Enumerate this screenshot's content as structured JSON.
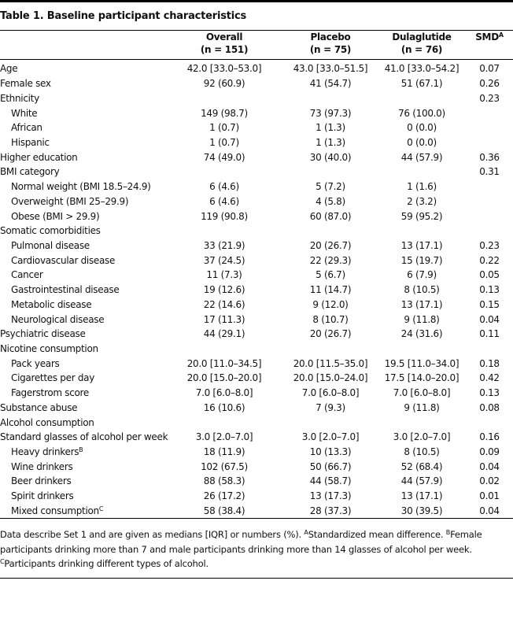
{
  "title": "Table 1. Baseline participant characteristics",
  "table": {
    "header": [
      {
        "title": "Overall",
        "n": "(n = 151)"
      },
      {
        "title": "Placebo",
        "n": "(n = 75)"
      },
      {
        "title": "Dulaglutide",
        "n": "(n = 76)"
      },
      {
        "title": "SMD",
        "sup": "A"
      }
    ],
    "rows": [
      {
        "label": "Age",
        "cells": [
          "42.0 [33.0–53.0]",
          "43.0 [33.0–51.5]",
          "41.0 [33.0–54.2]",
          "0.07"
        ]
      },
      {
        "label": "Female sex",
        "cells": [
          "92 (60.9)",
          "41 (54.7)",
          "51 (67.1)",
          "0.26"
        ]
      },
      {
        "label": "Ethnicity",
        "cells": [
          null,
          null,
          null,
          "0.23"
        ],
        "children": [
          {
            "label": "White",
            "cells": [
              "149 (98.7)",
              "73 (97.3)",
              "76 (100.0)",
              null
            ]
          },
          {
            "label": "African",
            "cells": [
              "1 (0.7)",
              "1 (1.3)",
              "0 (0.0)",
              null
            ]
          },
          {
            "label": "Hispanic",
            "cells": [
              "1 (0.7)",
              "1 (1.3)",
              "0 (0.0)",
              null
            ]
          }
        ]
      },
      {
        "label": "Higher education",
        "cells": [
          "74 (49.0)",
          "30 (40.0)",
          "44 (57.9)",
          "0.36"
        ]
      },
      {
        "label": "BMI category",
        "cells": [
          null,
          null,
          null,
          "0.31"
        ],
        "children": [
          {
            "label": "Normal weight (BMI 18.5–24.9)",
            "cells": [
              "6 (4.6)",
              "5 (7.2)",
              "1 (1.6)",
              null
            ]
          },
          {
            "label": "Overweight (BMI 25–29.9)",
            "cells": [
              "6 (4.6)",
              "4 (5.8)",
              "2 (3.2)",
              null
            ]
          },
          {
            "label": "Obese (BMI > 29.9)",
            "cells": [
              "119 (90.8)",
              "60 (87.0)",
              "59 (95.2)",
              null
            ]
          }
        ]
      },
      {
        "label": "Somatic comorbidities",
        "cells": [
          null,
          null,
          null,
          null
        ],
        "children": [
          {
            "label": "Pulmonal disease",
            "cells": [
              "33 (21.9)",
              "20 (26.7)",
              "13 (17.1)",
              "0.23"
            ]
          },
          {
            "label": "Cardiovascular disease",
            "cells": [
              "37 (24.5)",
              "22 (29.3)",
              "15 (19.7)",
              "0.22"
            ]
          },
          {
            "label": "Cancer",
            "cells": [
              "11 (7.3)",
              "5 (6.7)",
              "6 (7.9)",
              "0.05"
            ]
          },
          {
            "label": "Gastrointestinal disease",
            "cells": [
              "19 (12.6)",
              "11 (14.7)",
              "8 (10.5)",
              "0.13"
            ]
          },
          {
            "label": "Metabolic disease",
            "cells": [
              "22 (14.6)",
              "9 (12.0)",
              "13 (17.1)",
              "0.15"
            ]
          },
          {
            "label": "Neurological disease",
            "cells": [
              "17 (11.3)",
              "8 (10.7)",
              "9 (11.8)",
              "0.04"
            ]
          }
        ]
      },
      {
        "label": "Psychiatric disease",
        "cells": [
          "44 (29.1)",
          "20 (26.7)",
          "24 (31.6)",
          "0.11"
        ]
      },
      {
        "label": "Nicotine consumption",
        "cells": [
          null,
          null,
          null,
          null
        ],
        "children": [
          {
            "label": "Pack years",
            "cells": [
              "20.0 [11.0–34.5]",
              "20.0 [11.5–35.0]",
              "19.5 [11.0–34.0]",
              "0.18"
            ]
          },
          {
            "label": "Cigarettes per day",
            "cells": [
              "20.0 [15.0–20.0]",
              "20.0 [15.0–24.0]",
              "17.5 [14.0–20.0]",
              "0.42"
            ]
          },
          {
            "label": "Fagerstrom score",
            "cells": [
              "7.0 [6.0–8.0]",
              "7.0 [6.0–8.0]",
              "7.0 [6.0–8.0]",
              "0.13"
            ]
          }
        ]
      },
      {
        "label": "Substance abuse",
        "cells": [
          "16 (10.6)",
          "7 (9.3)",
          "9 (11.8)",
          "0.08"
        ]
      },
      {
        "label": "Alcohol consumption",
        "cells": [
          null,
          null,
          null,
          null
        ]
      },
      {
        "label": "Standard glasses of alcohol per week",
        "cells": [
          "3.0 [2.0–7.0]",
          "3.0 [2.0–7.0]",
          "3.0 [2.0–7.0]",
          "0.16"
        ],
        "children": [
          {
            "label": "Heavy drinkers",
            "sup": "B",
            "cells": [
              "18 (11.9)",
              "10 (13.3)",
              "8 (10.5)",
              "0.09"
            ]
          },
          {
            "label": "Wine drinkers",
            "cells": [
              "102 (67.5)",
              "50 (66.7)",
              "52 (68.4)",
              "0.04"
            ]
          },
          {
            "label": "Beer drinkers",
            "cells": [
              "88 (58.3)",
              "44 (58.7)",
              "44 (57.9)",
              "0.02"
            ]
          },
          {
            "label": "Spirit drinkers",
            "cells": [
              "26 (17.2)",
              "13 (17.3)",
              "13 (17.1)",
              "0.01"
            ]
          },
          {
            "label": "Mixed consumption",
            "sup": "C",
            "cells": [
              "58 (38.4)",
              "28 (37.3)",
              "30 (39.5)",
              "0.04"
            ]
          }
        ]
      }
    ]
  },
  "notes": [
    {
      "text": "Data describe Set 1 and are given as medians [IQR] or numbers (%)."
    },
    {
      "sup": "A",
      "text": "Standardized mean difference."
    },
    {
      "sup": "B",
      "text": "Female participants drinking more than 7 and male participants drinking more than 14 glasses of alcohol per week."
    },
    {
      "sup": "C",
      "text": "Participants drinking different types of alcohol."
    }
  ]
}
